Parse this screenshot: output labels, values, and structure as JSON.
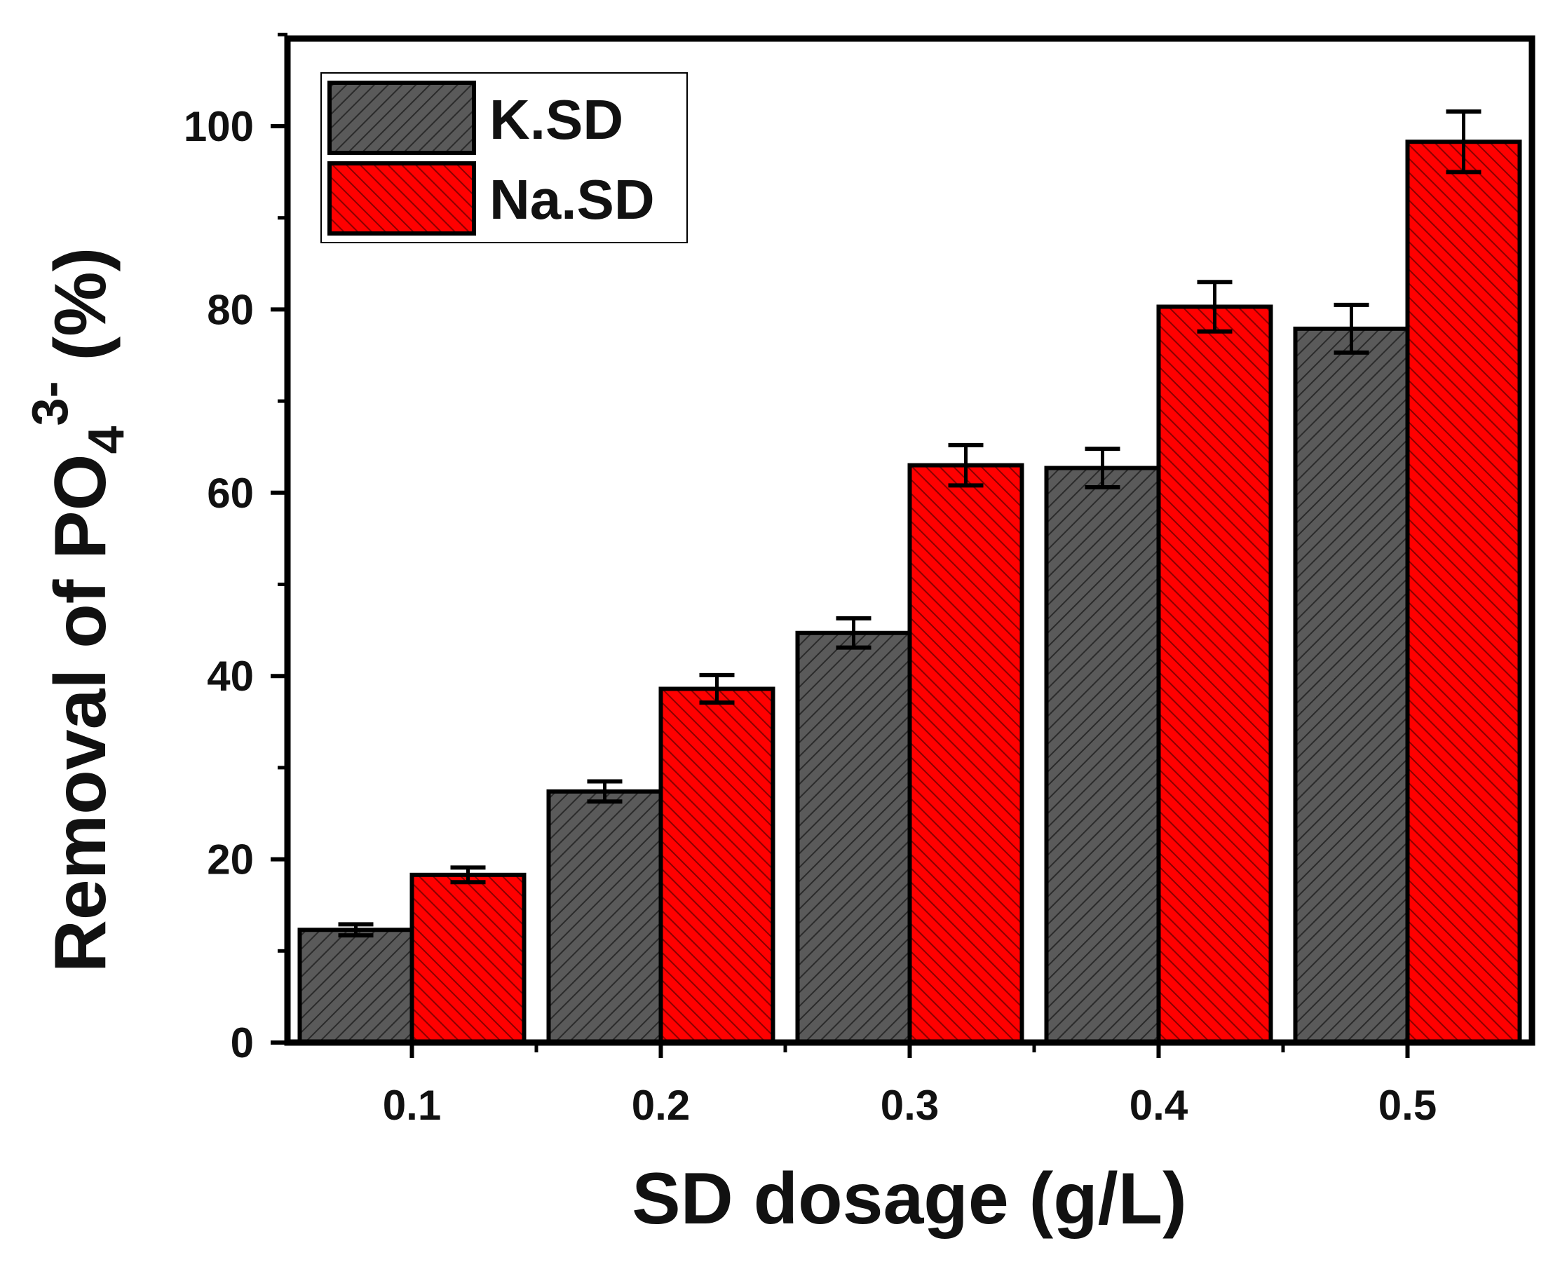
{
  "chart_data": {
    "type": "bar",
    "title": "",
    "xlabel": "SD dosage (g/L)",
    "ylabel": {
      "prefix": "Removal of PO",
      "subscript": "4",
      "superscript": "3-",
      "suffix": " (%)"
    },
    "categories": [
      "0.1",
      "0.2",
      "0.3",
      "0.4",
      "0.5"
    ],
    "ylim": [
      0,
      110
    ],
    "yticks": [
      "0",
      "20",
      "40",
      "60",
      "80",
      "100"
    ],
    "legend_position": "top-left",
    "series": [
      {
        "name": "K.SD",
        "color": "#5a5a5a",
        "values": [
          12.3,
          27.4,
          44.7,
          62.7,
          77.9
        ],
        "errors": [
          0.6,
          1.1,
          1.6,
          2.1,
          2.6
        ]
      },
      {
        "name": "Na.SD",
        "color": "#ff0000",
        "values": [
          18.3,
          38.6,
          63.0,
          80.3,
          98.3
        ],
        "errors": [
          0.8,
          1.5,
          2.2,
          2.7,
          3.3
        ]
      }
    ]
  }
}
